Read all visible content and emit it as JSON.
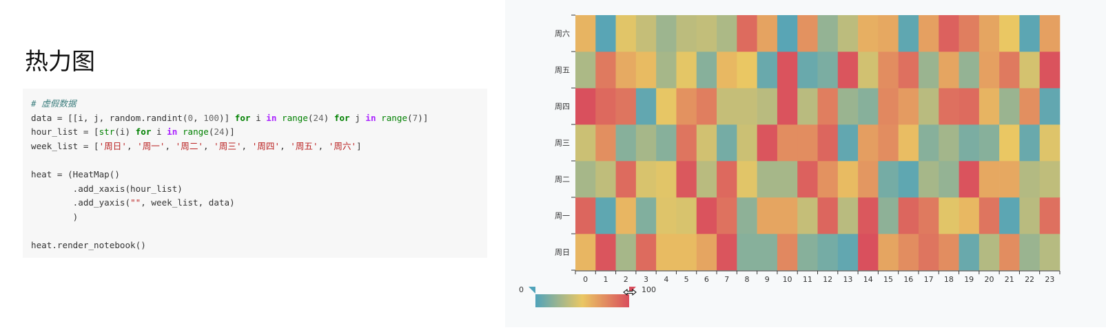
{
  "title": "热力图",
  "code_lines": [
    [
      {
        "t": "# 虚假数据",
        "c": "comment"
      }
    ],
    [
      {
        "t": "data = [[i, j, random.randint(",
        "c": ""
      },
      {
        "t": "0",
        "c": "num"
      },
      {
        "t": ", ",
        "c": ""
      },
      {
        "t": "100",
        "c": "num"
      },
      {
        "t": ")] ",
        "c": ""
      },
      {
        "t": "for",
        "c": "kw"
      },
      {
        "t": " i ",
        "c": ""
      },
      {
        "t": "in",
        "c": "op"
      },
      {
        "t": " ",
        "c": ""
      },
      {
        "t": "range",
        "c": "builtin"
      },
      {
        "t": "(",
        "c": ""
      },
      {
        "t": "24",
        "c": "num"
      },
      {
        "t": ") ",
        "c": ""
      },
      {
        "t": "for",
        "c": "kw"
      },
      {
        "t": " j ",
        "c": ""
      },
      {
        "t": "in",
        "c": "op"
      },
      {
        "t": " ",
        "c": ""
      },
      {
        "t": "range",
        "c": "builtin"
      },
      {
        "t": "(",
        "c": ""
      },
      {
        "t": "7",
        "c": "num"
      },
      {
        "t": ")]",
        "c": ""
      }
    ],
    [
      {
        "t": "hour_list = [",
        "c": ""
      },
      {
        "t": "str",
        "c": "builtin"
      },
      {
        "t": "(i) ",
        "c": ""
      },
      {
        "t": "for",
        "c": "kw"
      },
      {
        "t": " i ",
        "c": ""
      },
      {
        "t": "in",
        "c": "op"
      },
      {
        "t": " ",
        "c": ""
      },
      {
        "t": "range",
        "c": "builtin"
      },
      {
        "t": "(",
        "c": ""
      },
      {
        "t": "24",
        "c": "num"
      },
      {
        "t": ")]",
        "c": ""
      }
    ],
    [
      {
        "t": "week_list = [",
        "c": ""
      },
      {
        "t": "'周日'",
        "c": "str"
      },
      {
        "t": ", ",
        "c": ""
      },
      {
        "t": "'周一'",
        "c": "str"
      },
      {
        "t": ", ",
        "c": ""
      },
      {
        "t": "'周二'",
        "c": "str"
      },
      {
        "t": ", ",
        "c": ""
      },
      {
        "t": "'周三'",
        "c": "str"
      },
      {
        "t": ", ",
        "c": ""
      },
      {
        "t": "'周四'",
        "c": "str"
      },
      {
        "t": ", ",
        "c": ""
      },
      {
        "t": "'周五'",
        "c": "str"
      },
      {
        "t": ", ",
        "c": ""
      },
      {
        "t": "'周六'",
        "c": "str"
      },
      {
        "t": "]",
        "c": ""
      }
    ],
    [
      {
        "t": "",
        "c": ""
      }
    ],
    [
      {
        "t": "heat = (HeatMap()",
        "c": ""
      }
    ],
    [
      {
        "t": "        .add_xaxis(hour_list)",
        "c": ""
      }
    ],
    [
      {
        "t": "        .add_yaxis(",
        "c": ""
      },
      {
        "t": "\"\"",
        "c": "str"
      },
      {
        "t": ", week_list, data)",
        "c": ""
      }
    ],
    [
      {
        "t": "        )",
        "c": ""
      }
    ],
    [
      {
        "t": "",
        "c": ""
      }
    ],
    [
      {
        "t": "heat.render_notebook()",
        "c": ""
      }
    ]
  ],
  "chart_data": {
    "type": "heatmap",
    "x_categories": [
      "0",
      "1",
      "2",
      "3",
      "4",
      "5",
      "6",
      "7",
      "8",
      "9",
      "10",
      "11",
      "12",
      "13",
      "14",
      "15",
      "16",
      "17",
      "18",
      "19",
      "20",
      "21",
      "22",
      "23"
    ],
    "y_categories": [
      "周日",
      "周一",
      "周二",
      "周三",
      "周四",
      "周五",
      "周六"
    ],
    "values_by_y": [
      [
        57,
        97,
        28,
        88,
        55,
        55,
        64,
        97,
        18,
        18,
        76,
        18,
        12,
        6,
        99,
        64,
        74,
        84,
        74,
        8,
        32,
        74,
        24,
        33
      ],
      [
        90,
        5,
        57,
        16,
        46,
        44,
        98,
        85,
        20,
        64,
        64,
        38,
        90,
        34,
        96,
        20,
        90,
        82,
        47,
        56,
        84,
        4,
        34,
        86
      ],
      [
        28,
        36,
        88,
        44,
        47,
        96,
        34,
        89,
        47,
        28,
        28,
        92,
        72,
        55,
        70,
        12,
        5,
        28,
        22,
        98,
        63,
        63,
        32,
        36
      ],
      [
        40,
        73,
        18,
        28,
        18,
        84,
        42,
        12,
        40,
        97,
        74,
        74,
        90,
        6,
        67,
        74,
        54,
        18,
        27,
        14,
        18,
        50,
        8,
        46
      ],
      [
        99,
        89,
        84,
        6,
        49,
        72,
        80,
        38,
        38,
        34,
        98,
        34,
        80,
        24,
        18,
        76,
        68,
        34,
        86,
        88,
        58,
        24,
        73,
        6
      ],
      [
        30,
        82,
        62,
        55,
        28,
        48,
        18,
        56,
        50,
        8,
        98,
        8,
        14,
        97,
        42,
        74,
        86,
        24,
        64,
        22,
        66,
        82,
        43,
        98
      ],
      [
        58,
        3,
        47,
        38,
        25,
        35,
        37,
        30,
        88,
        65,
        3,
        72,
        22,
        35,
        60,
        63,
        5,
        66,
        92,
        80,
        64,
        50,
        4,
        66
      ]
    ],
    "visual_map": {
      "min": 0,
      "max": 100,
      "min_label": "0",
      "max_label": "100",
      "colors": [
        "#50a3ba",
        "#eac763",
        "#d94e5d"
      ]
    }
  }
}
